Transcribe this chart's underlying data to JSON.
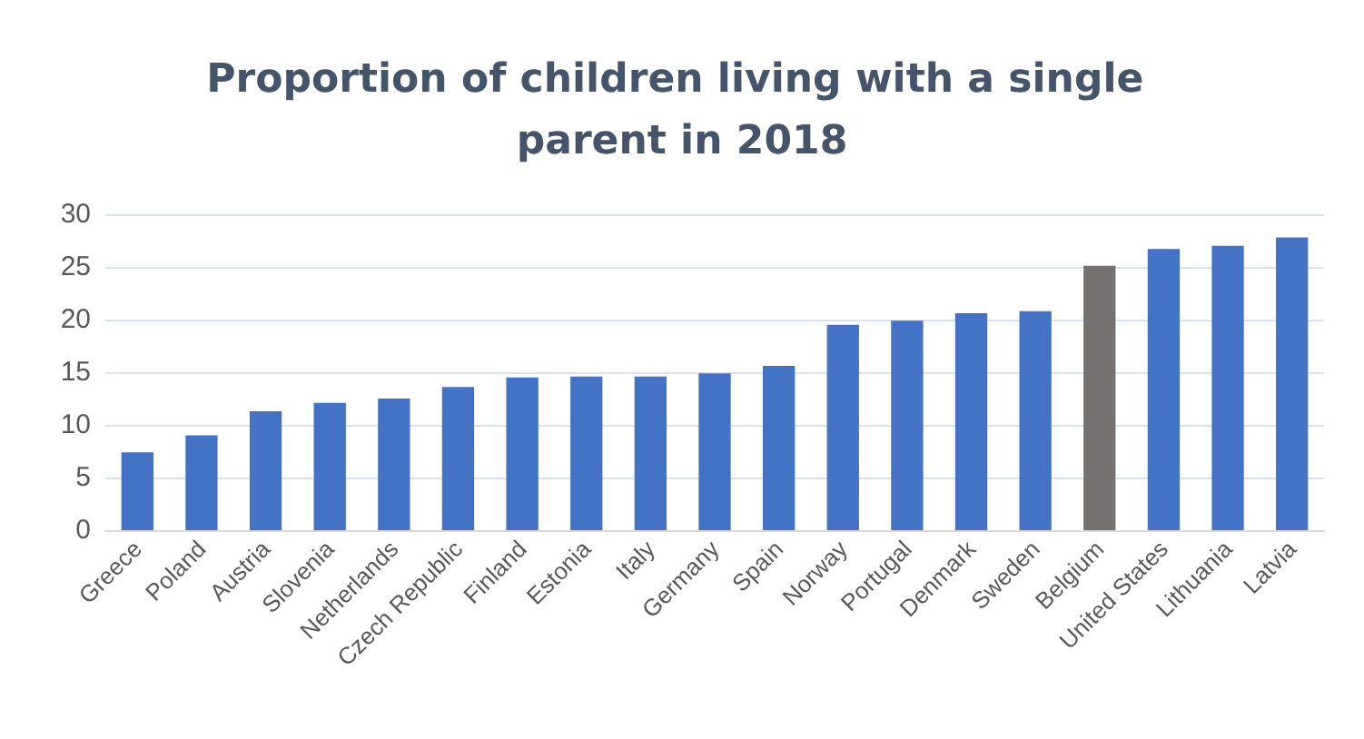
{
  "chart_data": {
    "type": "bar",
    "title": "Proportion of children living with a single parent in 2018",
    "categories": [
      "Greece",
      "Poland",
      "Austria",
      "Slovenia",
      "Netherlands",
      "Czech Republic",
      "Finland",
      "Estonia",
      "Italy",
      "Germany",
      "Spain",
      "Norway",
      "Portugal",
      "Denmark",
      "Sweden",
      "Belgium",
      "United States",
      "Lithuania",
      "Latvia"
    ],
    "values": [
      7.4,
      9.0,
      11.3,
      12.1,
      12.5,
      13.6,
      14.5,
      14.6,
      14.6,
      14.9,
      15.6,
      19.5,
      19.9,
      20.6,
      20.8,
      25.1,
      26.7,
      27.0,
      27.8
    ],
    "colors": [
      "#4472c4",
      "#4472c4",
      "#4472c4",
      "#4472c4",
      "#4472c4",
      "#4472c4",
      "#4472c4",
      "#4472c4",
      "#4472c4",
      "#4472c4",
      "#4472c4",
      "#4472c4",
      "#4472c4",
      "#4472c4",
      "#4472c4",
      "#767171",
      "#4472c4",
      "#4472c4",
      "#4472c4"
    ],
    "ylim": [
      0,
      30
    ],
    "yticks": [
      0,
      5,
      10,
      15,
      20,
      25,
      30
    ],
    "grid": "y"
  }
}
